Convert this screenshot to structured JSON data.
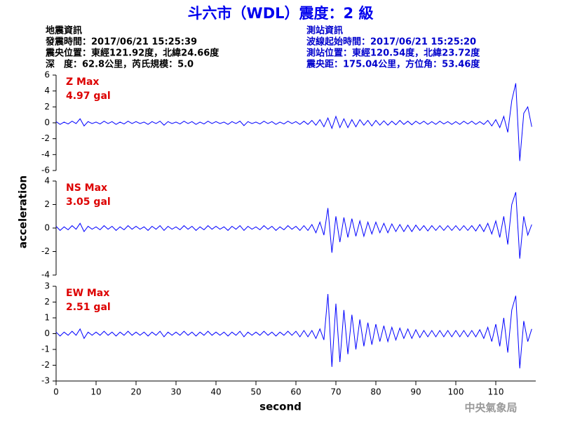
{
  "header": {
    "title": "斗六市（WDL）震度：2 級",
    "left": [
      "地震資訊",
      "發震時間：2017/06/21 15:25:39",
      "震央位置：東經121.92度，北緯24.66度",
      "深　度：62.8公里，芮氏規模：5.0"
    ],
    "right": [
      "測站資訊",
      "波線起始時間：2017/06/21 15:25:20",
      "測站位置：東經120.54度，北緯23.72度",
      "震央距：175.04公里，方位角：53.46度"
    ],
    "credit": "中央氣象局"
  },
  "ylabel": "acceleration",
  "chart_data": [
    {
      "type": "line",
      "label": "Z Max",
      "max_label": "4.97 gal",
      "color": "#0000ff",
      "ylim": [
        -6,
        6
      ],
      "yticks": [
        -6,
        -4,
        -2,
        0,
        2,
        4,
        6
      ],
      "xlim": [
        0,
        120
      ],
      "x": [
        0,
        1,
        2,
        3,
        4,
        5,
        6,
        7,
        8,
        9,
        10,
        11,
        12,
        13,
        14,
        15,
        16,
        17,
        18,
        19,
        20,
        21,
        22,
        23,
        24,
        25,
        26,
        27,
        28,
        29,
        30,
        31,
        32,
        33,
        34,
        35,
        36,
        37,
        38,
        39,
        40,
        41,
        42,
        43,
        44,
        45,
        46,
        47,
        48,
        49,
        50,
        51,
        52,
        53,
        54,
        55,
        56,
        57,
        58,
        59,
        60,
        61,
        62,
        63,
        64,
        65,
        66,
        67,
        68,
        69,
        70,
        71,
        72,
        73,
        74,
        75,
        76,
        77,
        78,
        79,
        80,
        81,
        82,
        83,
        84,
        85,
        86,
        87,
        88,
        89,
        90,
        91,
        92,
        93,
        94,
        95,
        96,
        97,
        98,
        99,
        100,
        101,
        102,
        103,
        104,
        105,
        106,
        107,
        108,
        109,
        110,
        111,
        112,
        113,
        114,
        115,
        116,
        117,
        118,
        119
      ],
      "values": [
        0.15,
        -0.2,
        0.1,
        -0.15,
        0.2,
        -0.1,
        0.5,
        -0.4,
        0.15,
        -0.1,
        0.1,
        -0.15,
        0.2,
        -0.1,
        0.15,
        -0.2,
        0.1,
        -0.15,
        0.2,
        -0.1,
        0.15,
        -0.1,
        0.1,
        -0.2,
        0.15,
        -0.1,
        0.2,
        -0.3,
        0.15,
        -0.1,
        0.1,
        -0.15,
        0.2,
        -0.1,
        0.15,
        -0.2,
        0.1,
        -0.15,
        0.2,
        -0.1,
        0.15,
        -0.1,
        0.1,
        -0.2,
        0.15,
        -0.1,
        0.2,
        -0.35,
        0.15,
        -0.1,
        0.1,
        -0.15,
        0.2,
        -0.1,
        0.15,
        -0.2,
        0.1,
        -0.15,
        0.2,
        -0.1,
        0.15,
        -0.2,
        0.2,
        -0.2,
        0.3,
        -0.3,
        0.4,
        -0.5,
        0.6,
        -0.7,
        0.8,
        -0.6,
        0.5,
        -0.6,
        0.4,
        -0.5,
        0.4,
        -0.3,
        0.3,
        -0.4,
        0.3,
        -0.3,
        0.25,
        -0.3,
        0.2,
        -0.25,
        0.3,
        -0.2,
        0.2,
        -0.25,
        0.2,
        -0.15,
        0.2,
        -0.2,
        0.15,
        -0.2,
        0.2,
        -0.15,
        0.15,
        -0.2,
        0.15,
        -0.2,
        0.2,
        -0.15,
        0.2,
        -0.2,
        0.15,
        -0.2,
        0.3,
        -0.4,
        0.4,
        -0.6,
        0.8,
        -1.2,
        2.8,
        4.97,
        -4.8,
        1.2,
        2,
        -0.5
      ]
    },
    {
      "type": "line",
      "label": "NS Max",
      "max_label": "3.05 gal",
      "color": "#0000ff",
      "ylim": [
        -4,
        4
      ],
      "yticks": [
        -4,
        -2,
        0,
        2,
        4
      ],
      "xlim": [
        0,
        120
      ],
      "x": [
        0,
        1,
        2,
        3,
        4,
        5,
        6,
        7,
        8,
        9,
        10,
        11,
        12,
        13,
        14,
        15,
        16,
        17,
        18,
        19,
        20,
        21,
        22,
        23,
        24,
        25,
        26,
        27,
        28,
        29,
        30,
        31,
        32,
        33,
        34,
        35,
        36,
        37,
        38,
        39,
        40,
        41,
        42,
        43,
        44,
        45,
        46,
        47,
        48,
        49,
        50,
        51,
        52,
        53,
        54,
        55,
        56,
        57,
        58,
        59,
        60,
        61,
        62,
        63,
        64,
        65,
        66,
        67,
        68,
        69,
        70,
        71,
        72,
        73,
        74,
        75,
        76,
        77,
        78,
        79,
        80,
        81,
        82,
        83,
        84,
        85,
        86,
        87,
        88,
        89,
        90,
        91,
        92,
        93,
        94,
        95,
        96,
        97,
        98,
        99,
        100,
        101,
        102,
        103,
        104,
        105,
        106,
        107,
        108,
        109,
        110,
        111,
        112,
        113,
        114,
        115,
        116,
        117,
        118,
        119
      ],
      "values": [
        0.15,
        -0.2,
        0.1,
        -0.15,
        0.2,
        -0.1,
        0.4,
        -0.3,
        0.15,
        -0.1,
        0.1,
        -0.15,
        0.2,
        -0.1,
        0.15,
        -0.2,
        0.1,
        -0.15,
        0.2,
        -0.1,
        0.15,
        -0.1,
        0.1,
        -0.2,
        0.15,
        -0.1,
        0.2,
        -0.2,
        0.15,
        -0.1,
        0.1,
        -0.15,
        0.2,
        -0.1,
        0.15,
        -0.2,
        0.1,
        -0.15,
        0.2,
        -0.1,
        0.15,
        -0.1,
        0.1,
        -0.2,
        0.15,
        -0.1,
        0.2,
        -0.2,
        0.15,
        -0.1,
        0.1,
        -0.15,
        0.2,
        -0.1,
        0.15,
        -0.2,
        0.1,
        -0.15,
        0.2,
        -0.1,
        0.15,
        -0.2,
        0.2,
        -0.2,
        0.3,
        -0.4,
        0.5,
        -0.6,
        1.7,
        -2.1,
        1,
        -1.2,
        0.9,
        -0.8,
        0.8,
        -0.7,
        0.6,
        -0.7,
        0.5,
        -0.5,
        0.5,
        -0.4,
        0.4,
        -0.4,
        0.35,
        -0.3,
        0.3,
        -0.3,
        0.25,
        -0.3,
        0.25,
        -0.2,
        0.2,
        -0.25,
        0.2,
        -0.2,
        0.2,
        -0.2,
        0.2,
        -0.2,
        0.2,
        -0.2,
        0.2,
        -0.2,
        0.2,
        -0.25,
        0.3,
        -0.3,
        0.4,
        -0.5,
        0.6,
        -0.8,
        1,
        -1.4,
        2,
        3.05,
        -2.6,
        1,
        -0.6,
        0.3
      ]
    },
    {
      "type": "line",
      "label": "EW Max",
      "max_label": "2.51 gal",
      "color": "#0000ff",
      "ylim": [
        -3,
        3
      ],
      "yticks": [
        -3,
        -2,
        -1,
        0,
        1,
        2,
        3
      ],
      "xlim": [
        0,
        120
      ],
      "xticks": [
        0,
        10,
        20,
        30,
        40,
        50,
        60,
        70,
        80,
        90,
        100,
        110
      ],
      "xlabel": "second",
      "x": [
        0,
        1,
        2,
        3,
        4,
        5,
        6,
        7,
        8,
        9,
        10,
        11,
        12,
        13,
        14,
        15,
        16,
        17,
        18,
        19,
        20,
        21,
        22,
        23,
        24,
        25,
        26,
        27,
        28,
        29,
        30,
        31,
        32,
        33,
        34,
        35,
        36,
        37,
        38,
        39,
        40,
        41,
        42,
        43,
        44,
        45,
        46,
        47,
        48,
        49,
        50,
        51,
        52,
        53,
        54,
        55,
        56,
        57,
        58,
        59,
        60,
        61,
        62,
        63,
        64,
        65,
        66,
        67,
        68,
        69,
        70,
        71,
        72,
        73,
        74,
        75,
        76,
        77,
        78,
        79,
        80,
        81,
        82,
        83,
        84,
        85,
        86,
        87,
        88,
        89,
        90,
        91,
        92,
        93,
        94,
        95,
        96,
        97,
        98,
        99,
        100,
        101,
        102,
        103,
        104,
        105,
        106,
        107,
        108,
        109,
        110,
        111,
        112,
        113,
        114,
        115,
        116,
        117,
        118,
        119
      ],
      "values": [
        0.1,
        -0.15,
        0.1,
        -0.1,
        0.15,
        -0.1,
        0.3,
        -0.3,
        0.1,
        -0.1,
        0.1,
        -0.1,
        0.15,
        -0.1,
        0.1,
        -0.15,
        0.1,
        -0.1,
        0.15,
        -0.1,
        0.1,
        -0.1,
        0.1,
        -0.15,
        0.1,
        -0.1,
        0.15,
        -0.2,
        0.1,
        -0.1,
        0.1,
        -0.1,
        0.15,
        -0.1,
        0.1,
        -0.15,
        0.1,
        -0.1,
        0.15,
        -0.1,
        0.1,
        -0.1,
        0.1,
        -0.15,
        0.1,
        -0.1,
        0.15,
        -0.2,
        0.1,
        -0.1,
        0.1,
        -0.1,
        0.15,
        -0.1,
        0.1,
        -0.15,
        0.1,
        -0.1,
        0.15,
        -0.1,
        0.15,
        -0.2,
        0.2,
        -0.2,
        0.2,
        -0.3,
        0.3,
        -0.4,
        2.51,
        -2.1,
        1.9,
        -1.8,
        1.5,
        -1.3,
        1.2,
        -1,
        0.9,
        -0.8,
        0.7,
        -0.7,
        0.6,
        -0.5,
        0.5,
        -0.5,
        0.4,
        -0.4,
        0.35,
        -0.3,
        0.3,
        -0.3,
        0.25,
        -0.25,
        0.2,
        -0.2,
        0.2,
        -0.2,
        0.2,
        -0.2,
        0.2,
        -0.2,
        0.2,
        -0.2,
        0.2,
        -0.2,
        0.2,
        -0.2,
        0.25,
        -0.3,
        0.4,
        -0.5,
        0.6,
        -0.8,
        1,
        -1.2,
        1.5,
        2.4,
        -2.2,
        0.8,
        -0.5,
        0.3
      ]
    }
  ]
}
